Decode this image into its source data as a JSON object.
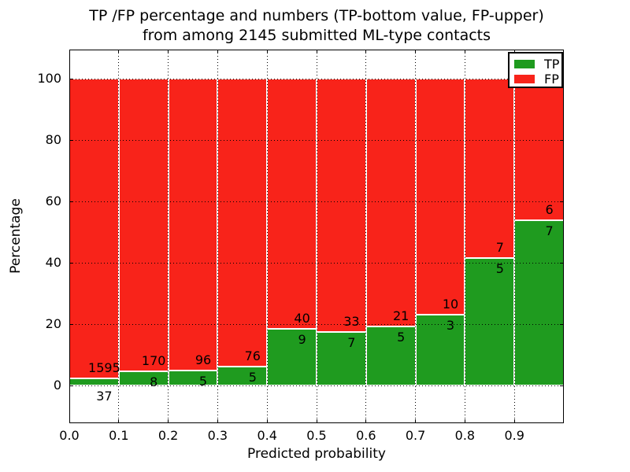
{
  "title": {
    "line1": "TP /FP percentage and numbers (TP-bottom value, FP-upper)",
    "line2": "from among 2145 submitted ML-type contacts"
  },
  "legend": {
    "items": [
      {
        "label": "TP",
        "color": "#1f9b1f"
      },
      {
        "label": "FP",
        "color": "#f8231a"
      }
    ]
  },
  "colors": {
    "tp_green": "#1f9b1f",
    "fp_red": "#f8231a",
    "text": "#000000",
    "background": "#ffffff"
  },
  "chart_data": {
    "type": "bar",
    "stacked": true,
    "normalized": "each bar totals 100%",
    "title": "TP /FP percentage and numbers (TP-bottom value, FP-upper) from among 2145 submitted ML-type contacts",
    "xlabel": "Predicted probability",
    "ylabel": "Percentage",
    "total_submitted_contacts": 2145,
    "grid": "dotted, on",
    "legend_position": "upper right",
    "bin_width": 0.1,
    "x_bin_starts": [
      0.0,
      0.1,
      0.2,
      0.3,
      0.4,
      0.5,
      0.6,
      0.7,
      0.8,
      0.9
    ],
    "xticks": [
      "0.0",
      "0.1",
      "0.2",
      "0.3",
      "0.4",
      "0.5",
      "0.6",
      "0.7",
      "0.8",
      "0.9"
    ],
    "yticks": [
      "0",
      "20",
      "40",
      "60",
      "80",
      "100"
    ],
    "ytick_values": [
      0,
      20,
      40,
      60,
      80,
      100
    ],
    "xlim": [
      0.0,
      1.0
    ],
    "ylim": [
      -12.3,
      109.5
    ],
    "series": [
      {
        "name": "TP",
        "color": "#1f9b1f",
        "counts": [
          37,
          8,
          5,
          5,
          9,
          7,
          5,
          3,
          5,
          7
        ]
      },
      {
        "name": "FP",
        "color": "#f8231a",
        "counts": [
          1595,
          170,
          96,
          76,
          40,
          33,
          21,
          10,
          7,
          6
        ]
      }
    ],
    "tp_percent_of_bar": [
      2.27,
      4.49,
      4.95,
      6.17,
      18.37,
      17.5,
      19.23,
      23.08,
      41.67,
      53.85
    ]
  }
}
